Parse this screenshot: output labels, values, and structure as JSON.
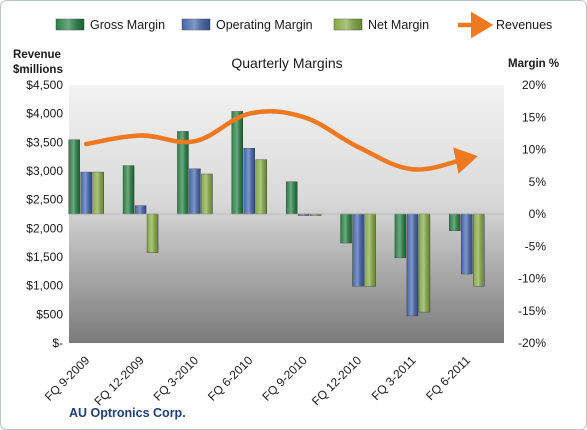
{
  "chart_data": {
    "type": "bar",
    "title": "Quarterly Margins",
    "company": "AU Optronics Corp.",
    "left_axis": {
      "title_line1": "Revenue",
      "title_line2": "$millions",
      "ylim": [
        0,
        4500
      ],
      "ticks": [
        0,
        500,
        1000,
        1500,
        2000,
        2500,
        3000,
        3500,
        4000,
        4500
      ],
      "tick_labels": [
        "$-",
        "$500",
        "$1,000",
        "$1,500",
        "$2,000",
        "$2,500",
        "$3,000",
        "$3,500",
        "$4,000",
        "$4,500"
      ]
    },
    "right_axis": {
      "title": "Margin %",
      "ylim": [
        -20,
        20
      ],
      "ticks": [
        -20,
        -15,
        -10,
        -5,
        0,
        5,
        10,
        15,
        20
      ],
      "tick_labels": [
        "-20%",
        "-15%",
        "-10%",
        "-5%",
        "0%",
        "5%",
        "10%",
        "15%",
        "20%"
      ]
    },
    "categories": [
      "FQ 9-2009",
      "FQ 12-2009",
      "FQ 3-2010",
      "FQ 6-2010",
      "FQ 9-2010",
      "FQ 12-2010",
      "FQ 3-2011",
      "FQ 6-2011"
    ],
    "series": [
      {
        "name": "Gross Margin",
        "type": "bar",
        "axis": "right",
        "color": "#1e7a3c",
        "values": [
          11.5,
          7.5,
          12.8,
          15.9,
          5.0,
          -4.5,
          -6.8,
          -2.6
        ]
      },
      {
        "name": "Operating Margin",
        "type": "bar",
        "axis": "right",
        "color": "#3b5fa8",
        "values": [
          6.5,
          1.3,
          7.0,
          10.2,
          -0.2,
          -11.2,
          -15.8,
          -9.3
        ]
      },
      {
        "name": "Net Margin",
        "type": "bar",
        "axis": "right",
        "color": "#7fa63a",
        "values": [
          6.5,
          -6.0,
          6.2,
          8.4,
          -0.2,
          -11.2,
          -15.2,
          -11.2
        ]
      },
      {
        "name": "Revenues",
        "type": "line",
        "axis": "left",
        "color": "#f07820",
        "values": [
          3470,
          3620,
          3520,
          4000,
          3940,
          3420,
          3030,
          3220
        ]
      }
    ],
    "grid": false,
    "legend_position": "top"
  },
  "colors": {
    "plot_bg_top": "#f2f2f2",
    "plot_bg_bottom": "#7a7a7a",
    "baseline": "#b0b0b0"
  }
}
